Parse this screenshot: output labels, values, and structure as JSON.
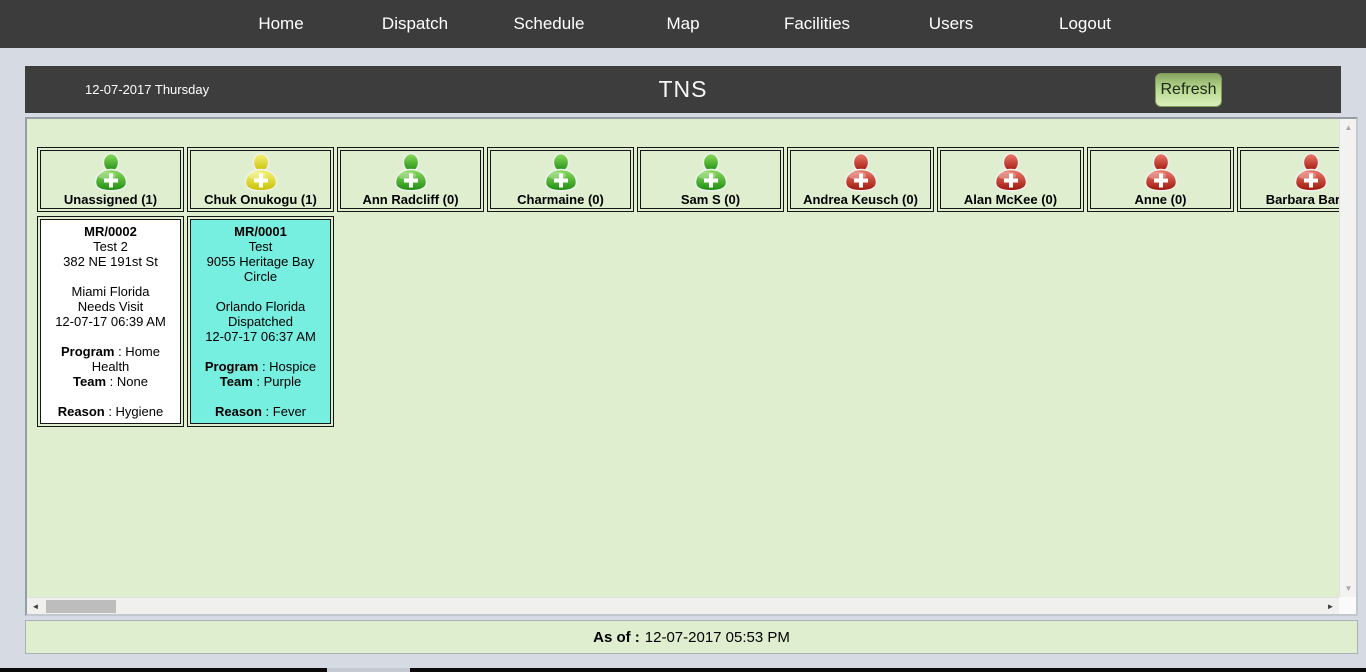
{
  "nav": {
    "items": [
      {
        "label": "Home"
      },
      {
        "label": "Dispatch"
      },
      {
        "label": "Schedule"
      },
      {
        "label": "Map"
      },
      {
        "label": "Facilities"
      },
      {
        "label": "Users"
      },
      {
        "label": "Logout"
      }
    ]
  },
  "header": {
    "date": "12-07-2017 Thursday",
    "title": "TNS",
    "refresh_label": "Refresh"
  },
  "board": {
    "card_field_labels": {
      "program": "Program",
      "team": "Team",
      "reason": "Reason"
    },
    "separator": " : ",
    "columns": [
      {
        "label": "Unassigned (1)",
        "status": "available",
        "visits": [
          {
            "mr": "MR/0002",
            "name": "Test 2",
            "address": "382 NE 191st St",
            "city": "Miami Florida",
            "visit_status": "Needs Visit",
            "time": "12-07-17 06:39 AM",
            "program": "Home Health",
            "team": "None",
            "reason": "Hygiene",
            "highlight": false
          }
        ]
      },
      {
        "label": "Chuk Onukogu (1)",
        "status": "busy",
        "visits": [
          {
            "mr": "MR/0001",
            "name": "Test",
            "address": "9055 Heritage Bay Circle",
            "city": "Orlando Florida",
            "visit_status": "Dispatched",
            "time": "12-07-17 06:37 AM",
            "program": "Hospice",
            "team": "Purple",
            "reason": "Fever",
            "highlight": true
          }
        ]
      },
      {
        "label": "Ann Radcliff (0)",
        "status": "available",
        "visits": []
      },
      {
        "label": "Charmaine (0)",
        "status": "available",
        "visits": []
      },
      {
        "label": "Sam S (0)",
        "status": "available",
        "visits": []
      },
      {
        "label": "Andrea Keusch (0)",
        "status": "unavailable",
        "visits": []
      },
      {
        "label": "Alan McKee (0)",
        "status": "unavailable",
        "visits": []
      },
      {
        "label": "Anne (0)",
        "status": "unavailable",
        "visits": []
      },
      {
        "label": "Barbara Barba",
        "status": "unavailable",
        "visits": []
      }
    ]
  },
  "footer": {
    "as_of_label": "As of :",
    "as_of_value": "12-07-2017 05:53 PM"
  },
  "icons": {
    "available": "person-green-icon",
    "busy": "person-yellow-icon",
    "unavailable": "person-red-icon",
    "scroll_up": "▲",
    "scroll_down": "▼",
    "scroll_left": "◄",
    "scroll_right": "►"
  },
  "colors": {
    "nav_bg": "#3c3c3c",
    "header_bg": "#3d3d3d",
    "page_bg": "#d5dae3",
    "content_bg": "#dfeecf",
    "card_bg": "#ffffff",
    "highlight_card": "#76eee0",
    "status_available": "#1c8c10",
    "status_busy": "#c9c000",
    "status_unavailable": "#9e150a",
    "refresh_button": "#b6d78b"
  }
}
